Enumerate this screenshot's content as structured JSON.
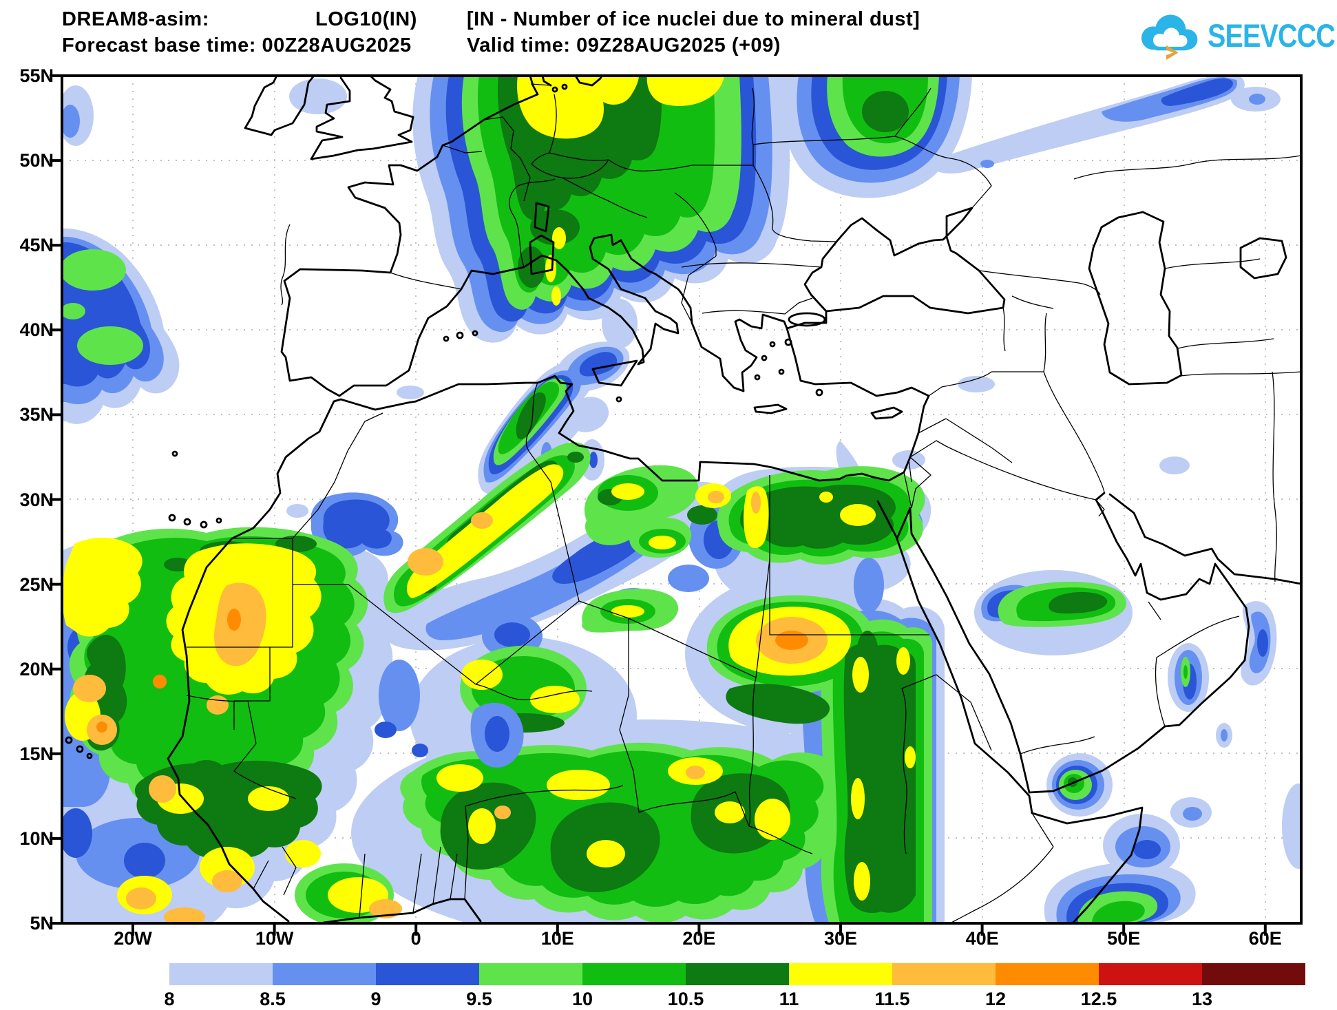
{
  "header": {
    "model": "DREAM8-asim:",
    "variable": "LOG10(IN)",
    "description": "[IN - Number of ice nuclei due to mineral dust]",
    "base_time": "Forecast base time: 00Z28AUG2025",
    "valid_time": "Valid time: 09Z28AUG2025 (+09)"
  },
  "logo": {
    "text": "SEEVCCC",
    "color": "#2ab4e8",
    "arrow_color": "#e2a53e"
  },
  "axes": {
    "lat": [
      "55N",
      "50N",
      "45N",
      "40N",
      "35N",
      "30N",
      "25N",
      "20N",
      "15N",
      "10N",
      "5N"
    ],
    "lon": [
      "20W",
      "10W",
      "0",
      "10E",
      "20E",
      "30E",
      "40E",
      "50E",
      "60E"
    ]
  },
  "legend": {
    "labels": [
      "8",
      "8.5",
      "9",
      "9.5",
      "10",
      "10.5",
      "11",
      "11.5",
      "12",
      "12.5",
      "13"
    ],
    "colors": [
      "#bdcdf4",
      "#6590f0",
      "#2a55d6",
      "#5fe34b",
      "#12bd12",
      "#0d7a12",
      "#ffff00",
      "#ffbb3c",
      "#ff8c00",
      "#cd1212",
      "#720c0c"
    ]
  }
}
